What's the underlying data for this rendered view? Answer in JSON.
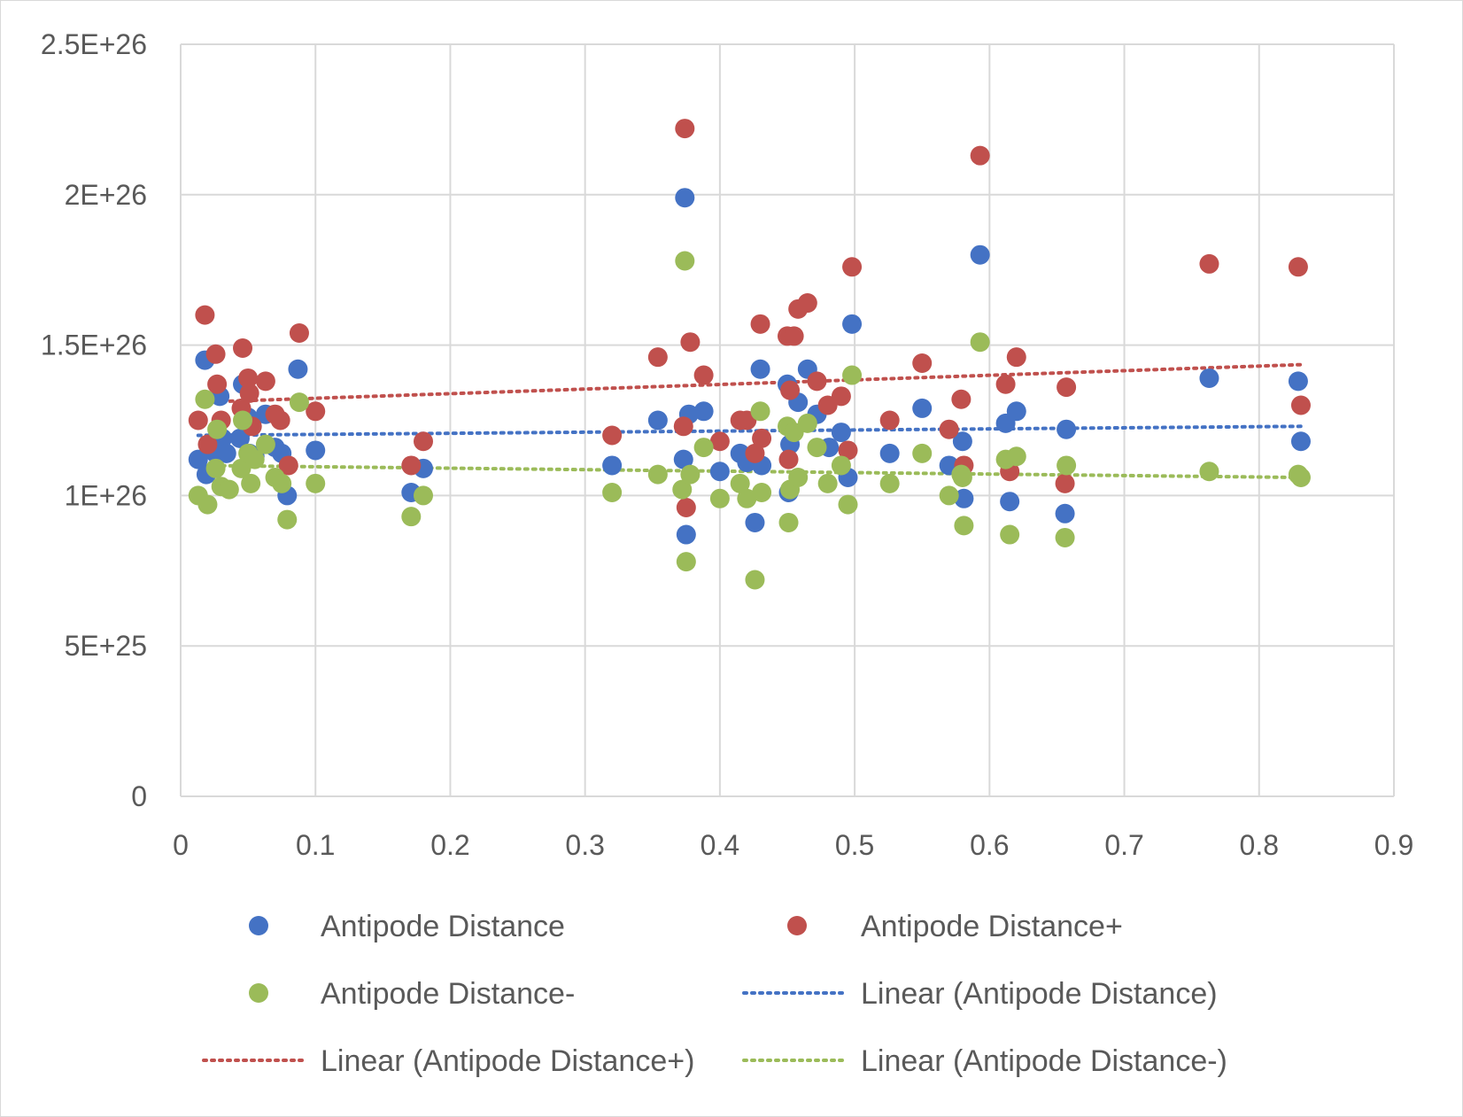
{
  "chart_data": {
    "type": "scatter",
    "title": "",
    "xlabel": "",
    "ylabel": "",
    "xlim": [
      0,
      0.9
    ],
    "ylim": [
      0,
      2.5e+26
    ],
    "x_ticks": [
      0,
      0.1,
      0.2,
      0.3,
      0.4,
      0.5,
      0.6,
      0.7,
      0.8,
      0.9
    ],
    "x_tick_labels": [
      "0",
      "0.1",
      "0.2",
      "0.3",
      "0.4",
      "0.5",
      "0.6",
      "0.7",
      "0.8",
      "0.9"
    ],
    "y_ticks": [
      0,
      5e+25,
      1e+26,
      1.5e+26,
      2e+26,
      2.5e+26
    ],
    "y_tick_labels": [
      "0",
      "5E+25",
      "1E+26",
      "1.5E+26",
      "2E+26",
      "2.5E+26"
    ],
    "grid": "on",
    "legend_position": "bottom",
    "series": [
      {
        "name": "Antipode Distance",
        "color": "#4472C4",
        "points": [
          [
            0.013,
            1.12e+26
          ],
          [
            0.018,
            1.45e+26
          ],
          [
            0.019,
            1.07e+26
          ],
          [
            0.026,
            1.14e+26
          ],
          [
            0.029,
            1.33e+26
          ],
          [
            0.031,
            1.19e+26
          ],
          [
            0.034,
            1.14e+26
          ],
          [
            0.044,
            1.19e+26
          ],
          [
            0.046,
            1.37e+26
          ],
          [
            0.05,
            1.26e+26
          ],
          [
            0.051,
            1.14e+26
          ],
          [
            0.055,
            1.13e+26
          ],
          [
            0.063,
            1.27e+26
          ],
          [
            0.07,
            1.16e+26
          ],
          [
            0.075,
            1.14e+26
          ],
          [
            0.079,
            1e+26
          ],
          [
            0.087,
            1.42e+26
          ],
          [
            0.1,
            1.15e+26
          ],
          [
            0.171,
            1.01e+26
          ],
          [
            0.18,
            1.09e+26
          ],
          [
            0.32,
            1.1e+26
          ],
          [
            0.354,
            1.25e+26
          ],
          [
            0.373,
            1.12e+26
          ],
          [
            0.374,
            1.99e+26
          ],
          [
            0.375,
            8.7e+25
          ],
          [
            0.377,
            1.27e+26
          ],
          [
            0.388,
            1.28e+26
          ],
          [
            0.4,
            1.08e+26
          ],
          [
            0.415,
            1.14e+26
          ],
          [
            0.42,
            1.11e+26
          ],
          [
            0.426,
            9.1e+25
          ],
          [
            0.43,
            1.42e+26
          ],
          [
            0.431,
            1.1e+26
          ],
          [
            0.45,
            1.37e+26
          ],
          [
            0.451,
            1.01e+26
          ],
          [
            0.452,
            1.17e+26
          ],
          [
            0.458,
            1.31e+26
          ],
          [
            0.465,
            1.42e+26
          ],
          [
            0.472,
            1.27e+26
          ],
          [
            0.481,
            1.16e+26
          ],
          [
            0.49,
            1.21e+26
          ],
          [
            0.495,
            1.06e+26
          ],
          [
            0.498,
            1.57e+26
          ],
          [
            0.526,
            1.14e+26
          ],
          [
            0.55,
            1.29e+26
          ],
          [
            0.57,
            1.1e+26
          ],
          [
            0.58,
            1.18e+26
          ],
          [
            0.581,
            9.9e+25
          ],
          [
            0.593,
            1.8e+26
          ],
          [
            0.612,
            1.24e+26
          ],
          [
            0.615,
            9.8e+25
          ],
          [
            0.62,
            1.28e+26
          ],
          [
            0.656,
            9.4e+25
          ],
          [
            0.657,
            1.22e+26
          ],
          [
            0.763,
            1.39e+26
          ],
          [
            0.829,
            1.38e+26
          ],
          [
            0.831,
            1.18e+26
          ]
        ]
      },
      {
        "name": "Antipode Distance+",
        "color": "#C0504D",
        "points": [
          [
            0.013,
            1.25e+26
          ],
          [
            0.018,
            1.6e+26
          ],
          [
            0.02,
            1.17e+26
          ],
          [
            0.026,
            1.47e+26
          ],
          [
            0.027,
            1.37e+26
          ],
          [
            0.03,
            1.25e+26
          ],
          [
            0.045,
            1.29e+26
          ],
          [
            0.046,
            1.49e+26
          ],
          [
            0.05,
            1.39e+26
          ],
          [
            0.051,
            1.34e+26
          ],
          [
            0.053,
            1.23e+26
          ],
          [
            0.063,
            1.38e+26
          ],
          [
            0.07,
            1.27e+26
          ],
          [
            0.074,
            1.25e+26
          ],
          [
            0.08,
            1.1e+26
          ],
          [
            0.088,
            1.54e+26
          ],
          [
            0.1,
            1.28e+26
          ],
          [
            0.171,
            1.1e+26
          ],
          [
            0.18,
            1.18e+26
          ],
          [
            0.32,
            1.2e+26
          ],
          [
            0.354,
            1.46e+26
          ],
          [
            0.373,
            1.23e+26
          ],
          [
            0.374,
            2.22e+26
          ],
          [
            0.375,
            9.6e+25
          ],
          [
            0.378,
            1.51e+26
          ],
          [
            0.388,
            1.4e+26
          ],
          [
            0.4,
            1.18e+26
          ],
          [
            0.415,
            1.25e+26
          ],
          [
            0.42,
            1.25e+26
          ],
          [
            0.426,
            1.14e+26
          ],
          [
            0.43,
            1.57e+26
          ],
          [
            0.431,
            1.19e+26
          ],
          [
            0.45,
            1.53e+26
          ],
          [
            0.451,
            1.12e+26
          ],
          [
            0.452,
            1.35e+26
          ],
          [
            0.455,
            1.53e+26
          ],
          [
            0.458,
            1.62e+26
          ],
          [
            0.465,
            1.64e+26
          ],
          [
            0.472,
            1.38e+26
          ],
          [
            0.48,
            1.3e+26
          ],
          [
            0.49,
            1.33e+26
          ],
          [
            0.495,
            1.15e+26
          ],
          [
            0.498,
            1.76e+26
          ],
          [
            0.526,
            1.25e+26
          ],
          [
            0.55,
            1.44e+26
          ],
          [
            0.57,
            1.22e+26
          ],
          [
            0.579,
            1.32e+26
          ],
          [
            0.581,
            1.1e+26
          ],
          [
            0.593,
            2.13e+26
          ],
          [
            0.612,
            1.37e+26
          ],
          [
            0.615,
            1.08e+26
          ],
          [
            0.62,
            1.46e+26
          ],
          [
            0.656,
            1.04e+26
          ],
          [
            0.657,
            1.36e+26
          ],
          [
            0.763,
            1.77e+26
          ],
          [
            0.829,
            1.76e+26
          ],
          [
            0.831,
            1.3e+26
          ]
        ]
      },
      {
        "name": "Antipode Distance-",
        "color": "#9BBB59",
        "points": [
          [
            0.013,
            1e+26
          ],
          [
            0.018,
            1.32e+26
          ],
          [
            0.02,
            9.7e+25
          ],
          [
            0.026,
            1.09e+26
          ],
          [
            0.027,
            1.22e+26
          ],
          [
            0.03,
            1.03e+26
          ],
          [
            0.036,
            1.02e+26
          ],
          [
            0.045,
            1.09e+26
          ],
          [
            0.046,
            1.25e+26
          ],
          [
            0.05,
            1.14e+26
          ],
          [
            0.052,
            1.04e+26
          ],
          [
            0.055,
            1.12e+26
          ],
          [
            0.063,
            1.17e+26
          ],
          [
            0.07,
            1.06e+26
          ],
          [
            0.075,
            1.04e+26
          ],
          [
            0.079,
            9.2e+25
          ],
          [
            0.088,
            1.31e+26
          ],
          [
            0.1,
            1.04e+26
          ],
          [
            0.171,
            9.3e+25
          ],
          [
            0.18,
            1e+26
          ],
          [
            0.32,
            1.01e+26
          ],
          [
            0.354,
            1.07e+26
          ],
          [
            0.372,
            1.02e+26
          ],
          [
            0.374,
            1.78e+26
          ],
          [
            0.375,
            7.8e+25
          ],
          [
            0.378,
            1.07e+26
          ],
          [
            0.388,
            1.16e+26
          ],
          [
            0.4,
            9.9e+25
          ],
          [
            0.415,
            1.04e+26
          ],
          [
            0.42,
            9.9e+25
          ],
          [
            0.426,
            7.2e+25
          ],
          [
            0.43,
            1.28e+26
          ],
          [
            0.431,
            1.01e+26
          ],
          [
            0.45,
            1.23e+26
          ],
          [
            0.451,
            9.1e+25
          ],
          [
            0.452,
            1.02e+26
          ],
          [
            0.455,
            1.21e+26
          ],
          [
            0.458,
            1.06e+26
          ],
          [
            0.465,
            1.24e+26
          ],
          [
            0.472,
            1.16e+26
          ],
          [
            0.48,
            1.04e+26
          ],
          [
            0.49,
            1.1e+26
          ],
          [
            0.495,
            9.7e+25
          ],
          [
            0.498,
            1.4e+26
          ],
          [
            0.526,
            1.04e+26
          ],
          [
            0.55,
            1.14e+26
          ],
          [
            0.57,
            1e+26
          ],
          [
            0.579,
            1.07e+26
          ],
          [
            0.58,
            1.06e+26
          ],
          [
            0.581,
            9e+25
          ],
          [
            0.593,
            1.51e+26
          ],
          [
            0.612,
            1.12e+26
          ],
          [
            0.615,
            8.7e+25
          ],
          [
            0.62,
            1.13e+26
          ],
          [
            0.656,
            8.6e+25
          ],
          [
            0.657,
            1.1e+26
          ],
          [
            0.763,
            1.08e+26
          ],
          [
            0.829,
            1.07e+26
          ],
          [
            0.831,
            1.06e+26
          ]
        ]
      }
    ],
    "trendlines": [
      {
        "name": "Linear (Antipode Distance)",
        "color": "#4472C4",
        "x": [
          0.013,
          0.831
        ],
        "y": [
          1.2e+26,
          1.23e+26
        ]
      },
      {
        "name": "Linear (Antipode Distance+)",
        "color": "#C0504D",
        "x": [
          0.013,
          0.831
        ],
        "y": [
          1.31e+26,
          1.435e+26
        ]
      },
      {
        "name": "Linear (Antipode Distance-)",
        "color": "#9BBB59",
        "x": [
          0.013,
          0.831
        ],
        "y": [
          1.1e+26,
          1.06e+26
        ]
      }
    ],
    "legend": [
      {
        "label": "Antipode Distance",
        "kind": "marker",
        "color": "#4472C4"
      },
      {
        "label": "Antipode Distance+",
        "kind": "marker",
        "color": "#C0504D"
      },
      {
        "label": "Antipode Distance-",
        "kind": "marker",
        "color": "#9BBB59"
      },
      {
        "label": "Linear (Antipode Distance)",
        "kind": "line",
        "color": "#4472C4"
      },
      {
        "label": "Linear (Antipode Distance+)",
        "kind": "line",
        "color": "#C0504D"
      },
      {
        "label": "Linear (Antipode Distance-)",
        "kind": "line",
        "color": "#9BBB59"
      }
    ]
  }
}
